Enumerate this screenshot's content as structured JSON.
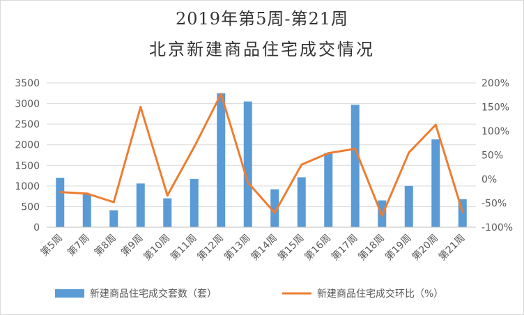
{
  "chart_data": {
    "type": "bar+line",
    "title": "2019年第5周-第21周",
    "subtitle": "北京新建商品住宅成交情况",
    "categories": [
      "第5周",
      "第7周",
      "第8周",
      "第9周",
      "第10周",
      "第11周",
      "第12周",
      "第13周",
      "第14周",
      "第15周",
      "第16周",
      "第17周",
      "第18周",
      "第19周",
      "第20周",
      "第21周"
    ],
    "series": [
      {
        "name": "新建商品住宅成交套数（套）",
        "type": "bar",
        "axis": "left",
        "color": "#5B9BD5",
        "values": [
          1200,
          800,
          410,
          1060,
          700,
          1170,
          3250,
          3050,
          920,
          1210,
          1800,
          2970,
          650,
          1000,
          2130,
          680
        ]
      },
      {
        "name": "新建商品住宅成交环比（%）",
        "type": "line",
        "axis": "right",
        "color": "#ED7D31",
        "values": [
          -27,
          -30,
          -48,
          150,
          -34,
          67,
          177,
          -7,
          -70,
          30,
          54,
          63,
          -76,
          55,
          113,
          -68
        ]
      }
    ],
    "y_left": {
      "min": 0,
      "max": 3500,
      "step": 500
    },
    "y_right": {
      "min": -100,
      "max": 200,
      "step": 50,
      "unit": "%"
    },
    "legend_position": "bottom",
    "grid": true
  }
}
